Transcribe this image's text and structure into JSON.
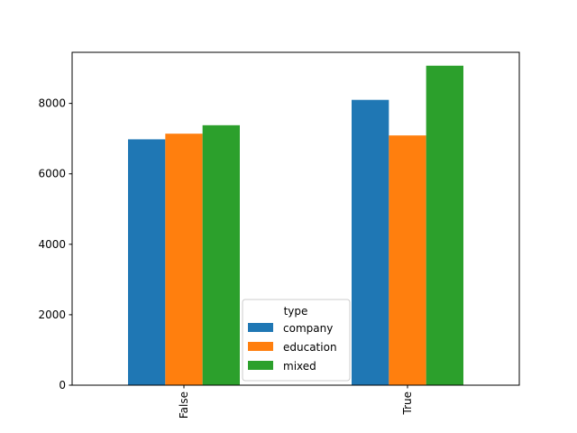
{
  "chart_data": {
    "type": "bar",
    "categories": [
      "False",
      "True"
    ],
    "series": [
      {
        "name": "company",
        "values": [
          6980,
          8100
        ],
        "color": "#1f77b4"
      },
      {
        "name": "education",
        "values": [
          7140,
          7090
        ],
        "color": "#ff7f0e"
      },
      {
        "name": "mixed",
        "values": [
          7380,
          9070
        ],
        "color": "#2ca02c"
      }
    ],
    "xlabel": "",
    "ylabel": "",
    "ylim": [
      0,
      9450
    ],
    "yticks": [
      0,
      2000,
      4000,
      6000,
      8000
    ],
    "legend": {
      "title": "type",
      "placement": "lower-center"
    },
    "grid": false
  }
}
